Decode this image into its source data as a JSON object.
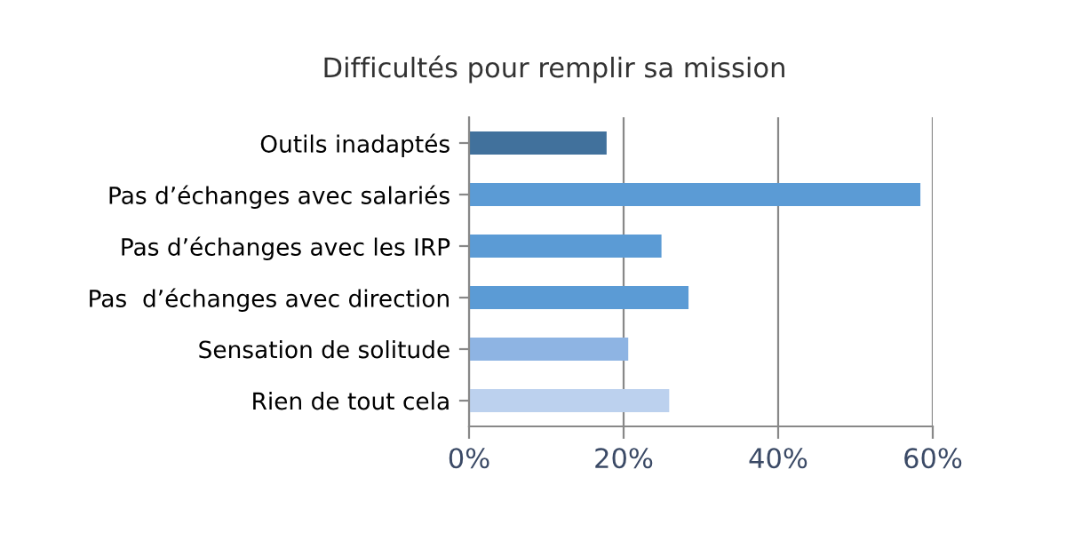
{
  "chart_data": {
    "type": "bar",
    "orientation": "horizontal",
    "title": "Difficultés pour remplir sa mission",
    "categories": [
      "Outils inadaptés",
      "Pas d’échanges avec salariés",
      "Pas d’échanges avec les IRP",
      "Pas  d’échanges avec direction",
      "Sensation de solitude",
      "Rien de tout cela"
    ],
    "values": [
      17.8,
      58.4,
      24.9,
      28.4,
      20.6,
      25.9
    ],
    "colors": [
      "#41719c",
      "#5b9bd5",
      "#5b9bd5",
      "#5b9bd5",
      "#8eb4e3",
      "#bcd1ee"
    ],
    "xlim": [
      0,
      60
    ],
    "xticks": [
      {
        "value": 0,
        "label": "0%"
      },
      {
        "value": 20,
        "label": "20%"
      },
      {
        "value": 40,
        "label": "40%"
      },
      {
        "value": 60,
        "label": "60%"
      }
    ],
    "grid": "x",
    "legend": false
  }
}
